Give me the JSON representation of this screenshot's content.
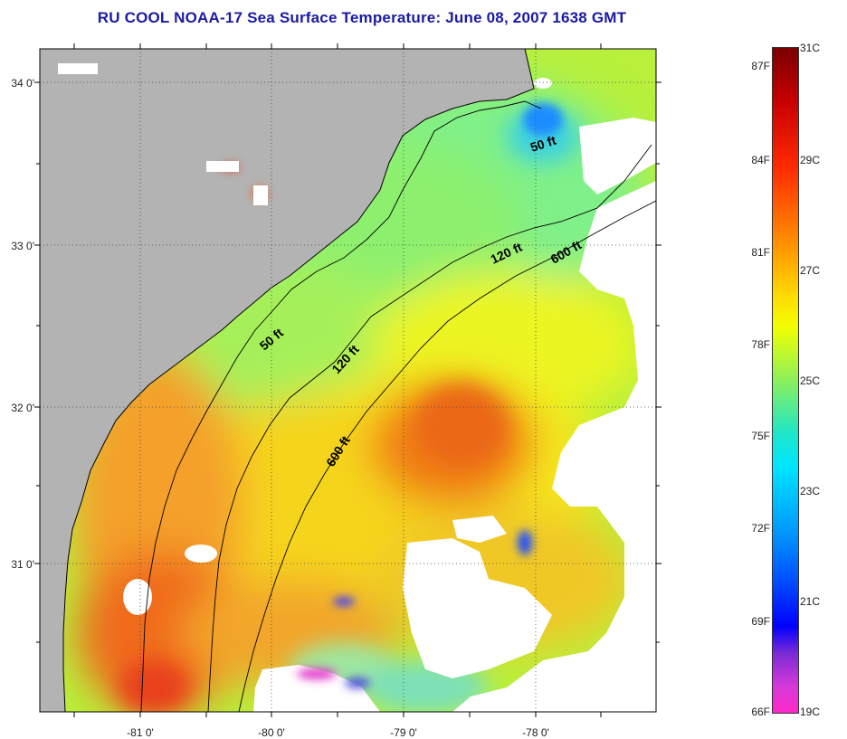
{
  "title": "RU COOL  NOAA-17  Sea Surface Temperature:  June 08, 2007 1638 GMT",
  "axes": {
    "lat_ticks": [
      "34 0'",
      "33 0'",
      "32 0'",
      "31 0'"
    ],
    "lon_ticks": [
      "-81 0'",
      "-80 0'",
      "-79 0'",
      "-78 0'"
    ]
  },
  "contours": [
    "50 ft",
    "50 ft",
    "120 ft",
    "120 ft",
    "600 ft",
    "600 ft"
  ],
  "colorbar": {
    "fahrenheit_ticks": [
      "87F",
      "84F",
      "81F",
      "78F",
      "75F",
      "72F",
      "69F",
      "66F"
    ],
    "celsius_ticks": [
      "31C",
      "29C",
      "27C",
      "25C",
      "23C",
      "21C",
      "19C"
    ],
    "colors": [
      "#7a0000",
      "#ff2a00",
      "#ff7a00",
      "#f2ff00",
      "#1ee6c8",
      "#0096ff",
      "#0000ff",
      "#ff28c8"
    ]
  },
  "colors": {
    "land": "#b3b3b3",
    "cloud": "#ffffff",
    "title": "#1a1aa6"
  }
}
